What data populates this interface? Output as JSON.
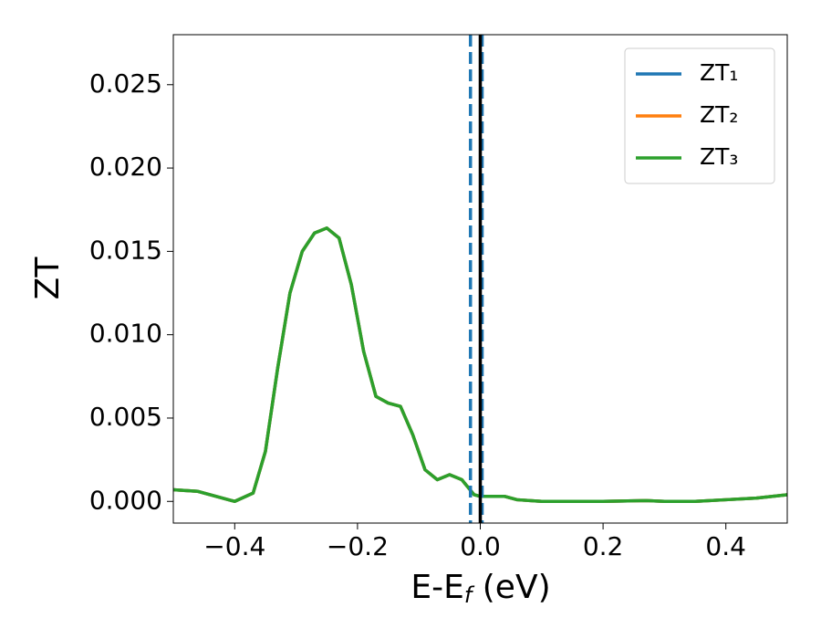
{
  "chart_data": {
    "type": "line",
    "x_label": [
      "E-E",
      "f",
      " (eV)"
    ],
    "y_label": "ZT",
    "x": [
      -0.5,
      -0.46,
      -0.43,
      -0.4,
      -0.37,
      -0.35,
      -0.33,
      -0.31,
      -0.29,
      -0.27,
      -0.25,
      -0.23,
      -0.21,
      -0.19,
      -0.17,
      -0.15,
      -0.13,
      -0.11,
      -0.09,
      -0.07,
      -0.05,
      -0.03,
      -0.01,
      0.0,
      0.02,
      0.04,
      0.06,
      0.1,
      0.2,
      0.27,
      0.3,
      0.35,
      0.4,
      0.45,
      0.5
    ],
    "series": [
      {
        "name": "ZT₁",
        "color": "#1f77b4",
        "values": [
          0.0007,
          0.0006,
          0.0003,
          0.0,
          0.0005,
          0.003,
          0.008,
          0.0125,
          0.015,
          0.0161,
          0.0164,
          0.0158,
          0.013,
          0.009,
          0.0063,
          0.0059,
          0.0057,
          0.004,
          0.0019,
          0.0013,
          0.0016,
          0.0013,
          0.0004,
          0.0003,
          0.0003,
          0.0003,
          0.0001,
          0.0,
          0.0,
          5e-05,
          0.0,
          0.0,
          0.0001,
          0.0002,
          0.0004
        ]
      },
      {
        "name": "ZT₂",
        "color": "#ff7f0e",
        "values": [
          0.0007,
          0.0006,
          0.0003,
          0.0,
          0.0005,
          0.003,
          0.008,
          0.0125,
          0.015,
          0.0161,
          0.0164,
          0.0158,
          0.013,
          0.009,
          0.0063,
          0.0059,
          0.0057,
          0.004,
          0.0019,
          0.0013,
          0.0016,
          0.0013,
          0.0004,
          0.0003,
          0.0003,
          0.0003,
          0.0001,
          0.0,
          0.0,
          5e-05,
          0.0,
          0.0,
          0.0001,
          0.0002,
          0.0004
        ]
      },
      {
        "name": "ZT₃",
        "color": "#2ca02c",
        "values": [
          0.0007,
          0.0006,
          0.0003,
          0.0,
          0.0005,
          0.003,
          0.008,
          0.0125,
          0.015,
          0.0161,
          0.0164,
          0.0158,
          0.013,
          0.009,
          0.0063,
          0.0059,
          0.0057,
          0.004,
          0.0019,
          0.0013,
          0.0016,
          0.0013,
          0.0004,
          0.0003,
          0.0003,
          0.0003,
          0.0001,
          0.0,
          0.0,
          5e-05,
          0.0,
          0.0,
          0.0001,
          0.0002,
          0.0004
        ]
      }
    ],
    "vlines": [
      {
        "x": -0.016,
        "color": "#1f77b4",
        "style": "dashed"
      },
      {
        "x": 0.003,
        "color": "#1f77b4",
        "style": "dashed"
      },
      {
        "x": 0.0,
        "color": "#000000",
        "style": "solid"
      }
    ],
    "xlim": [
      -0.5,
      0.5
    ],
    "ylim": [
      -0.0013,
      0.028
    ],
    "xticks": [
      {
        "value": -0.4,
        "label": "−0.4"
      },
      {
        "value": -0.2,
        "label": "−0.2"
      },
      {
        "value": 0.0,
        "label": "0.0"
      },
      {
        "value": 0.2,
        "label": "0.2"
      },
      {
        "value": 0.4,
        "label": "0.4"
      }
    ],
    "yticks": [
      {
        "value": 0.0,
        "label": "0.000"
      },
      {
        "value": 0.005,
        "label": "0.005"
      },
      {
        "value": 0.01,
        "label": "0.010"
      },
      {
        "value": 0.015,
        "label": "0.015"
      },
      {
        "value": 0.02,
        "label": "0.020"
      },
      {
        "value": 0.025,
        "label": "0.025"
      }
    ],
    "legend_position": "upper right",
    "grid": false
  }
}
